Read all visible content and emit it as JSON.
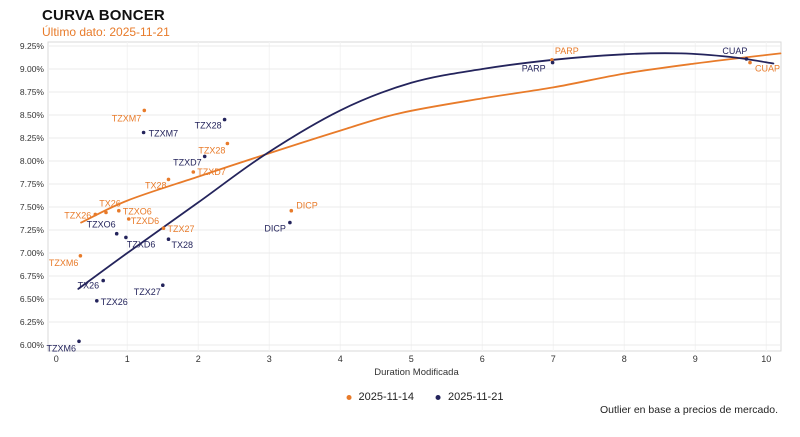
{
  "header": {
    "title": "CURVA BONCER",
    "subtitle": "Último dato: 2025-11-21"
  },
  "chart_data": {
    "type": "scatter",
    "title": "CURVA BONCER",
    "subtitle": "Último dato: 2025-11-21",
    "xlabel": "Duration Modificada",
    "ylabel": "",
    "xlim": [
      -0.12,
      10.21
    ],
    "ylim": [
      5.94,
      9.29
    ],
    "x_ticks": [
      "0",
      "1",
      "2",
      "3",
      "4",
      "5",
      "6",
      "7",
      "8",
      "9",
      "10"
    ],
    "y_ticks": [
      "9.25%",
      "9.00%",
      "8.75%",
      "8.50%",
      "8.25%",
      "8.00%",
      "7.75%",
      "7.50%",
      "7.25%",
      "7.00%",
      "6.75%",
      "6.50%",
      "6.25%",
      "6.00%"
    ],
    "grid": true,
    "legend_position": "bottom-center",
    "footnote": "Outlier en base a precios de mercado.",
    "colors": {
      "orange_series": "#e87b2a",
      "navy_series": "#24245c",
      "gridline": "#ebebeb",
      "plot_border": "#d9d9d9",
      "tick_text": "#333333"
    },
    "series": [
      {
        "name": "2025-11-14",
        "color": "#e87b2a",
        "points": [
          {
            "label": "TZXM6",
            "x": 0.34,
            "y": 6.97,
            "anchor": "end",
            "dx": -2,
            "dy": 10
          },
          {
            "label": "TZX26",
            "x": 0.55,
            "y": 7.42,
            "anchor": "end",
            "dx": -4,
            "dy": 4
          },
          {
            "label": "TX26",
            "x": 0.7,
            "y": 7.44,
            "anchor": "middle",
            "dx": 4,
            "dy": -6
          },
          {
            "label": "TZXO6",
            "x": 0.88,
            "y": 7.46,
            "anchor": "start",
            "dx": 4,
            "dy": 4
          },
          {
            "label": "TZXD6",
            "x": 1.02,
            "y": 7.37,
            "anchor": "start",
            "dx": 2,
            "dy": 5
          },
          {
            "label": "TZXM7",
            "x": 1.24,
            "y": 8.55,
            "anchor": "end",
            "dx": -3,
            "dy": 11
          },
          {
            "label": "TZX27",
            "x": 1.51,
            "y": 7.27,
            "anchor": "start",
            "dx": 4,
            "dy": 4
          },
          {
            "label": "TX28",
            "x": 1.58,
            "y": 7.8,
            "anchor": "end",
            "dx": -2,
            "dy": 9
          },
          {
            "label": "TZXD7",
            "x": 1.93,
            "y": 7.88,
            "anchor": "start",
            "dx": 4,
            "dy": 3
          },
          {
            "label": "TZX28",
            "x": 2.41,
            "y": 8.19,
            "anchor": "end",
            "dx": -2,
            "dy": 10
          },
          {
            "label": "DICP",
            "x": 3.31,
            "y": 7.46,
            "anchor": "start",
            "dx": 5,
            "dy": -2
          },
          {
            "label": "PARP",
            "x": 6.98,
            "y": 9.1,
            "anchor": "start",
            "dx": 3,
            "dy": -6
          },
          {
            "label": "CUAP",
            "x": 9.77,
            "y": 9.07,
            "anchor": "start",
            "dx": 5,
            "dy": 9
          }
        ],
        "curve": [
          [
            0.35,
            7.33
          ],
          [
            1,
            7.57
          ],
          [
            2,
            7.83
          ],
          [
            2.94,
            8.07
          ],
          [
            4,
            8.33
          ],
          [
            4.84,
            8.52
          ],
          [
            6,
            8.68
          ],
          [
            7,
            8.8
          ],
          [
            8,
            8.95
          ],
          [
            9,
            9.06
          ],
          [
            10.2,
            9.17
          ]
        ]
      },
      {
        "name": "2025-11-21",
        "color": "#24245c",
        "points": [
          {
            "label": "TZXM6",
            "x": 0.32,
            "y": 6.04,
            "anchor": "end",
            "dx": -3,
            "dy": 10
          },
          {
            "label": "TZX26",
            "x": 0.57,
            "y": 6.48,
            "anchor": "start",
            "dx": 4,
            "dy": 4
          },
          {
            "label": "TX26",
            "x": 0.66,
            "y": 6.7,
            "anchor": "end",
            "dx": -4,
            "dy": 8
          },
          {
            "label": "TZXO6",
            "x": 0.85,
            "y": 7.21,
            "anchor": "end",
            "dx": -1,
            "dy": -6
          },
          {
            "label": "TZXD6",
            "x": 0.98,
            "y": 7.17,
            "anchor": "start",
            "dx": 1,
            "dy": 10
          },
          {
            "label": "TZX27",
            "x": 1.5,
            "y": 6.65,
            "anchor": "end",
            "dx": -2,
            "dy": 10
          },
          {
            "label": "TX28",
            "x": 1.58,
            "y": 7.15,
            "anchor": "start",
            "dx": 3,
            "dy": 9
          },
          {
            "label": "TZXM7",
            "x": 1.23,
            "y": 8.31,
            "anchor": "start",
            "dx": 5,
            "dy": 4
          },
          {
            "label": "TZXD7",
            "x": 2.09,
            "y": 8.05,
            "anchor": "end",
            "dx": -3,
            "dy": 9
          },
          {
            "label": "TZX28",
            "x": 2.37,
            "y": 8.45,
            "anchor": "end",
            "dx": -3,
            "dy": 9
          },
          {
            "label": "DICP",
            "x": 3.29,
            "y": 7.33,
            "anchor": "end",
            "dx": -4,
            "dy": 9
          },
          {
            "label": "PARP",
            "x": 6.99,
            "y": 9.07,
            "anchor": "end",
            "dx": -7,
            "dy": 9
          },
          {
            "label": "CUAP",
            "x": 9.72,
            "y": 9.11,
            "anchor": "end",
            "dx": 1,
            "dy": -5
          }
        ],
        "curve": [
          [
            0.31,
            6.61
          ],
          [
            1,
            7.0
          ],
          [
            2,
            7.55
          ],
          [
            2.94,
            8.07
          ],
          [
            4,
            8.55
          ],
          [
            5,
            8.85
          ],
          [
            6,
            9.0
          ],
          [
            7,
            9.1
          ],
          [
            8,
            9.16
          ],
          [
            8.8,
            9.17
          ],
          [
            9.5,
            9.13
          ],
          [
            10.1,
            9.06
          ]
        ]
      }
    ]
  },
  "legend": {
    "items": [
      {
        "label": "2025-11-14"
      },
      {
        "label": "2025-11-21"
      }
    ]
  },
  "footnote": "Outlier en base a precios de mercado."
}
